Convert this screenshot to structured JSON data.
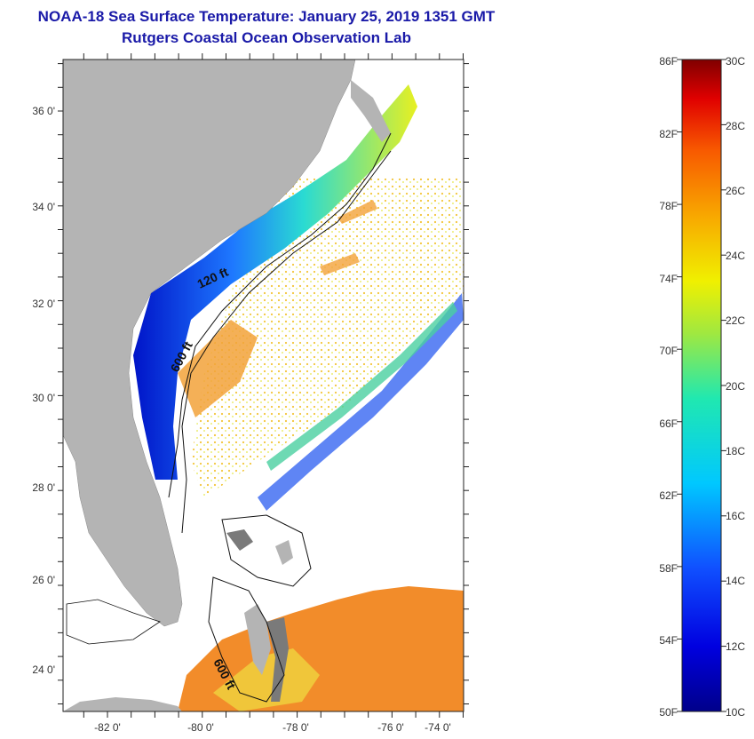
{
  "title": {
    "line1": "NOAA-18 Sea Surface Temperature:  January 25, 2019 1351 GMT",
    "line2": "Rutgers Coastal Ocean Observation Lab"
  },
  "map": {
    "lat_labels": [
      "36 0'",
      "34 0'",
      "32 0'",
      "30 0'",
      "28 0'",
      "26 0'",
      "24 0'"
    ],
    "lon_labels": [
      "-82 0'",
      "-80 0'",
      "-78 0'",
      "-76 0'",
      "-74 0'"
    ],
    "contour_labels": [
      "120 ft",
      "600 ft",
      "600 ft"
    ],
    "colors": {
      "land": "#b4b4b4",
      "ocean_nodata": "#ffffff"
    }
  },
  "colorbar": {
    "fahrenheit": [
      "86F",
      "82F",
      "78F",
      "74F",
      "70F",
      "66F",
      "62F",
      "58F",
      "54F",
      "50F"
    ],
    "celsius": [
      "30C",
      "28C",
      "26C",
      "24C",
      "22C",
      "20C",
      "18C",
      "16C",
      "14C",
      "12C",
      "10C"
    ]
  }
}
